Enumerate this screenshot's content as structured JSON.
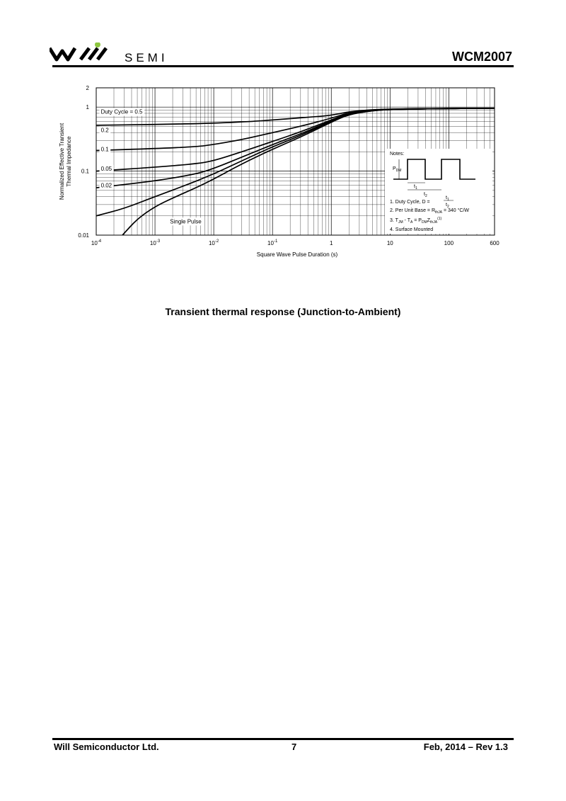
{
  "header": {
    "logo_text": "SEMI",
    "part_number": "WCM2007",
    "logo_accent_color": "#8dc63f"
  },
  "chart_data": {
    "type": "line",
    "x_scale": "log",
    "y_scale": "log",
    "xlim": [
      0.0001,
      600
    ],
    "ylim": [
      0.01,
      2
    ],
    "xlabel": "Square Wave Pulse Duration (s)",
    "ylabel_line1": "Normalized Effective Transient",
    "ylabel_line2": "Thermal Impedance",
    "x_ticks": [
      {
        "value": 0.0001,
        "label": "10",
        "exp": "-4"
      },
      {
        "value": 0.001,
        "label": "10",
        "exp": "-3"
      },
      {
        "value": 0.01,
        "label": "10",
        "exp": "-2"
      },
      {
        "value": 0.1,
        "label": "10",
        "exp": "-1"
      },
      {
        "value": 1,
        "label": "1",
        "exp": ""
      },
      {
        "value": 10,
        "label": "10",
        "exp": ""
      },
      {
        "value": 100,
        "label": "100",
        "exp": ""
      },
      {
        "value": 600,
        "label": "600",
        "exp": ""
      }
    ],
    "y_ticks": [
      {
        "value": 2,
        "label": "2"
      },
      {
        "value": 1,
        "label": "1"
      },
      {
        "value": 0.1,
        "label": "0.1"
      },
      {
        "value": 0.01,
        "label": "0.01"
      }
    ],
    "grid": true,
    "series": [
      {
        "name": "Duty Cycle = 0.5",
        "label_at": [
          0.00012,
          0.85
        ],
        "x": [
          0.0001,
          0.001,
          0.01,
          0.05,
          0.1,
          0.3,
          1,
          2,
          5,
          10,
          100,
          600
        ],
        "y": [
          0.52,
          0.535,
          0.56,
          0.6,
          0.63,
          0.68,
          0.74,
          0.85,
          0.91,
          0.93,
          0.955,
          0.96
        ]
      },
      {
        "name": "0.2",
        "label_at": [
          0.00012,
          0.44
        ],
        "x": [
          0.0001,
          0.001,
          0.005,
          0.01,
          0.03,
          0.1,
          0.3,
          1,
          2,
          5,
          10,
          100,
          600
        ],
        "y": [
          0.21,
          0.225,
          0.24,
          0.26,
          0.31,
          0.4,
          0.5,
          0.67,
          0.82,
          0.9,
          0.93,
          0.955,
          0.96
        ]
      },
      {
        "name": "0.1",
        "label_at": [
          0.00012,
          0.22
        ],
        "x": [
          0.0001,
          0.001,
          0.005,
          0.01,
          0.03,
          0.1,
          0.3,
          1,
          2,
          5,
          10,
          100,
          600
        ],
        "y": [
          0.1,
          0.115,
          0.13,
          0.145,
          0.2,
          0.29,
          0.41,
          0.63,
          0.8,
          0.89,
          0.92,
          0.95,
          0.96
        ]
      },
      {
        "name": "0.05",
        "label_at": [
          0.00012,
          0.11
        ],
        "x": [
          0.0001,
          0.001,
          0.005,
          0.01,
          0.03,
          0.1,
          0.3,
          1,
          2,
          5,
          10,
          100,
          600
        ],
        "y": [
          0.055,
          0.07,
          0.09,
          0.11,
          0.165,
          0.26,
          0.38,
          0.61,
          0.79,
          0.89,
          0.92,
          0.95,
          0.96
        ]
      },
      {
        "name": "0.02",
        "label_at": [
          0.00012,
          0.06
        ],
        "x": [
          0.0001,
          0.0003,
          0.001,
          0.003,
          0.01,
          0.03,
          0.1,
          0.3,
          1,
          2,
          5,
          10,
          100,
          600
        ],
        "y": [
          0.02,
          0.026,
          0.04,
          0.058,
          0.09,
          0.145,
          0.24,
          0.36,
          0.6,
          0.78,
          0.88,
          0.92,
          0.95,
          0.96
        ]
      },
      {
        "name": "Single Pulse",
        "label_at": [
          0.0018,
          0.0165
        ],
        "x": [
          0.00028,
          0.0005,
          0.001,
          0.002,
          0.005,
          0.01,
          0.03,
          0.1,
          0.3,
          1,
          2,
          5,
          10,
          100,
          600
        ],
        "y": [
          0.01,
          0.018,
          0.028,
          0.038,
          0.055,
          0.075,
          0.13,
          0.22,
          0.34,
          0.58,
          0.77,
          0.88,
          0.92,
          0.95,
          0.96
        ]
      }
    ],
    "annotations": {
      "notes_title": "Notes:",
      "pdm_label": "P",
      "pdm_sub": "DM",
      "t1_label": "t",
      "t1_sub": "1",
      "t2_label": "t",
      "t2_sub": "2",
      "note1_prefix": "1. Duty Cycle, D = ",
      "note1_num": "t",
      "note1_num_sub": "1",
      "note1_den": "t",
      "note1_den_sub": "2",
      "note2": "2. Per Unit Base = R",
      "note2_sub": "thJA",
      "note2_suffix": " = 340 °C/W",
      "note3_a": "3. T",
      "note3_a_sub": "JM",
      "note3_b": " - T",
      "note3_b_sub": "A",
      "note3_c": " = P",
      "note3_c_sub": "DM",
      "note3_d": "Z",
      "note3_d_sub": "thJA",
      "note3_sup": "(1)",
      "note4": "4. Surface Mounted"
    }
  },
  "caption": "Transient thermal response (Junction-to-Ambient)",
  "footer": {
    "company": "Will Semiconductor Ltd.",
    "page_number": "7",
    "revision": "Feb, 2014 – Rev 1.3"
  }
}
